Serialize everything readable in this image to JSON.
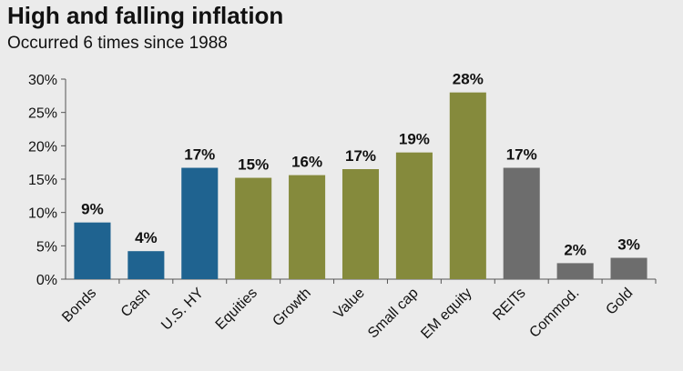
{
  "chart_data": {
    "type": "bar",
    "title": "High and falling inflation",
    "subtitle": "Occurred 6 times since 1988",
    "categories": [
      "Bonds",
      "Cash",
      "U.S. HY",
      "Equities",
      "Growth",
      "Value",
      "Small cap",
      "EM equity",
      "REITs",
      "Commod.",
      "Gold"
    ],
    "values": [
      8.5,
      4.2,
      16.7,
      15.2,
      15.6,
      16.5,
      19.0,
      28.0,
      16.7,
      2.4,
      3.2
    ],
    "data_labels": [
      "9%",
      "4%",
      "17%",
      "15%",
      "16%",
      "17%",
      "19%",
      "28%",
      "17%",
      "2%",
      "3%"
    ],
    "colors": [
      "#1f6390",
      "#1f6390",
      "#1f6390",
      "#858a3c",
      "#858a3c",
      "#858a3c",
      "#858a3c",
      "#858a3c",
      "#6d6d6d",
      "#6d6d6d",
      "#6d6d6d"
    ],
    "yticks": [
      "0%",
      "5%",
      "10%",
      "15%",
      "20%",
      "25%",
      "30%"
    ],
    "ylim": [
      0,
      30
    ],
    "xlabel": "",
    "ylabel": "",
    "grid": false,
    "axis_color": "#555555"
  }
}
